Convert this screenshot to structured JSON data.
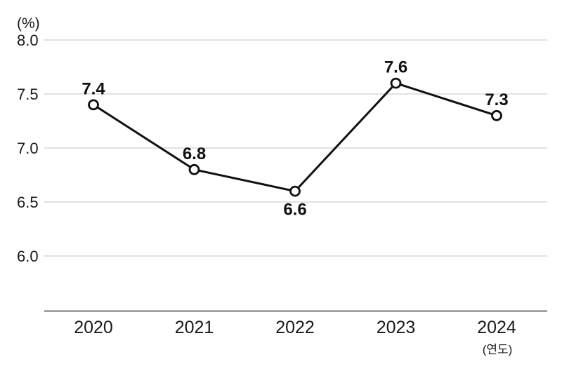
{
  "chart_data": {
    "type": "line",
    "categories": [
      "2020",
      "2021",
      "2022",
      "2023",
      "2024"
    ],
    "values": [
      7.4,
      6.8,
      6.6,
      7.6,
      7.3
    ],
    "series_name": "",
    "title": "",
    "xlabel": "(연도)",
    "ylabel": "(%)",
    "y_ticks": [
      8.0,
      7.5,
      7.0,
      6.5,
      6.0
    ],
    "ylim": [
      5.5,
      8.0
    ],
    "grid": true,
    "legend": false,
    "marker": "open-circle",
    "label_positions": [
      "above",
      "above",
      "below",
      "above",
      "above"
    ],
    "colors": {
      "line": "#111111",
      "marker_fill": "#ffffff",
      "grid": "#c6c6c6",
      "axis": "#3d3d3d",
      "tick_text": "#1a1a1a",
      "value_label": "#111111",
      "background": "#ffffff"
    }
  }
}
